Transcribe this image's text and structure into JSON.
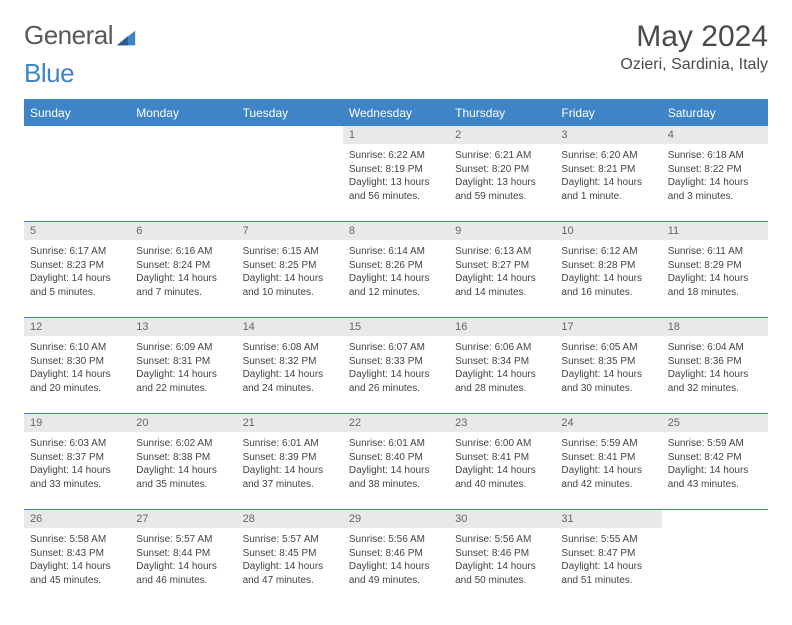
{
  "logo": {
    "part1": "General",
    "part2": "Blue"
  },
  "title": {
    "month": "May 2024",
    "location": "Ozieri, Sardinia, Italy"
  },
  "weekdays": [
    "Sunday",
    "Monday",
    "Tuesday",
    "Wednesday",
    "Thursday",
    "Friday",
    "Saturday"
  ],
  "colors": {
    "accent": "#3e84c6",
    "daynum_bg": "#e8e9ea"
  },
  "weeks": [
    [
      null,
      null,
      null,
      {
        "n": "1",
        "sr": "Sunrise: 6:22 AM",
        "ss": "Sunset: 8:19 PM",
        "dl": "Daylight: 13 hours and 56 minutes."
      },
      {
        "n": "2",
        "sr": "Sunrise: 6:21 AM",
        "ss": "Sunset: 8:20 PM",
        "dl": "Daylight: 13 hours and 59 minutes."
      },
      {
        "n": "3",
        "sr": "Sunrise: 6:20 AM",
        "ss": "Sunset: 8:21 PM",
        "dl": "Daylight: 14 hours and 1 minute."
      },
      {
        "n": "4",
        "sr": "Sunrise: 6:18 AM",
        "ss": "Sunset: 8:22 PM",
        "dl": "Daylight: 14 hours and 3 minutes."
      }
    ],
    [
      {
        "n": "5",
        "sr": "Sunrise: 6:17 AM",
        "ss": "Sunset: 8:23 PM",
        "dl": "Daylight: 14 hours and 5 minutes."
      },
      {
        "n": "6",
        "sr": "Sunrise: 6:16 AM",
        "ss": "Sunset: 8:24 PM",
        "dl": "Daylight: 14 hours and 7 minutes."
      },
      {
        "n": "7",
        "sr": "Sunrise: 6:15 AM",
        "ss": "Sunset: 8:25 PM",
        "dl": "Daylight: 14 hours and 10 minutes."
      },
      {
        "n": "8",
        "sr": "Sunrise: 6:14 AM",
        "ss": "Sunset: 8:26 PM",
        "dl": "Daylight: 14 hours and 12 minutes."
      },
      {
        "n": "9",
        "sr": "Sunrise: 6:13 AM",
        "ss": "Sunset: 8:27 PM",
        "dl": "Daylight: 14 hours and 14 minutes."
      },
      {
        "n": "10",
        "sr": "Sunrise: 6:12 AM",
        "ss": "Sunset: 8:28 PM",
        "dl": "Daylight: 14 hours and 16 minutes."
      },
      {
        "n": "11",
        "sr": "Sunrise: 6:11 AM",
        "ss": "Sunset: 8:29 PM",
        "dl": "Daylight: 14 hours and 18 minutes."
      }
    ],
    [
      {
        "n": "12",
        "sr": "Sunrise: 6:10 AM",
        "ss": "Sunset: 8:30 PM",
        "dl": "Daylight: 14 hours and 20 minutes."
      },
      {
        "n": "13",
        "sr": "Sunrise: 6:09 AM",
        "ss": "Sunset: 8:31 PM",
        "dl": "Daylight: 14 hours and 22 minutes."
      },
      {
        "n": "14",
        "sr": "Sunrise: 6:08 AM",
        "ss": "Sunset: 8:32 PM",
        "dl": "Daylight: 14 hours and 24 minutes."
      },
      {
        "n": "15",
        "sr": "Sunrise: 6:07 AM",
        "ss": "Sunset: 8:33 PM",
        "dl": "Daylight: 14 hours and 26 minutes."
      },
      {
        "n": "16",
        "sr": "Sunrise: 6:06 AM",
        "ss": "Sunset: 8:34 PM",
        "dl": "Daylight: 14 hours and 28 minutes."
      },
      {
        "n": "17",
        "sr": "Sunrise: 6:05 AM",
        "ss": "Sunset: 8:35 PM",
        "dl": "Daylight: 14 hours and 30 minutes."
      },
      {
        "n": "18",
        "sr": "Sunrise: 6:04 AM",
        "ss": "Sunset: 8:36 PM",
        "dl": "Daylight: 14 hours and 32 minutes."
      }
    ],
    [
      {
        "n": "19",
        "sr": "Sunrise: 6:03 AM",
        "ss": "Sunset: 8:37 PM",
        "dl": "Daylight: 14 hours and 33 minutes."
      },
      {
        "n": "20",
        "sr": "Sunrise: 6:02 AM",
        "ss": "Sunset: 8:38 PM",
        "dl": "Daylight: 14 hours and 35 minutes."
      },
      {
        "n": "21",
        "sr": "Sunrise: 6:01 AM",
        "ss": "Sunset: 8:39 PM",
        "dl": "Daylight: 14 hours and 37 minutes."
      },
      {
        "n": "22",
        "sr": "Sunrise: 6:01 AM",
        "ss": "Sunset: 8:40 PM",
        "dl": "Daylight: 14 hours and 38 minutes."
      },
      {
        "n": "23",
        "sr": "Sunrise: 6:00 AM",
        "ss": "Sunset: 8:41 PM",
        "dl": "Daylight: 14 hours and 40 minutes."
      },
      {
        "n": "24",
        "sr": "Sunrise: 5:59 AM",
        "ss": "Sunset: 8:41 PM",
        "dl": "Daylight: 14 hours and 42 minutes."
      },
      {
        "n": "25",
        "sr": "Sunrise: 5:59 AM",
        "ss": "Sunset: 8:42 PM",
        "dl": "Daylight: 14 hours and 43 minutes."
      }
    ],
    [
      {
        "n": "26",
        "sr": "Sunrise: 5:58 AM",
        "ss": "Sunset: 8:43 PM",
        "dl": "Daylight: 14 hours and 45 minutes."
      },
      {
        "n": "27",
        "sr": "Sunrise: 5:57 AM",
        "ss": "Sunset: 8:44 PM",
        "dl": "Daylight: 14 hours and 46 minutes."
      },
      {
        "n": "28",
        "sr": "Sunrise: 5:57 AM",
        "ss": "Sunset: 8:45 PM",
        "dl": "Daylight: 14 hours and 47 minutes."
      },
      {
        "n": "29",
        "sr": "Sunrise: 5:56 AM",
        "ss": "Sunset: 8:46 PM",
        "dl": "Daylight: 14 hours and 49 minutes."
      },
      {
        "n": "30",
        "sr": "Sunrise: 5:56 AM",
        "ss": "Sunset: 8:46 PM",
        "dl": "Daylight: 14 hours and 50 minutes."
      },
      {
        "n": "31",
        "sr": "Sunrise: 5:55 AM",
        "ss": "Sunset: 8:47 PM",
        "dl": "Daylight: 14 hours and 51 minutes."
      },
      null
    ]
  ]
}
